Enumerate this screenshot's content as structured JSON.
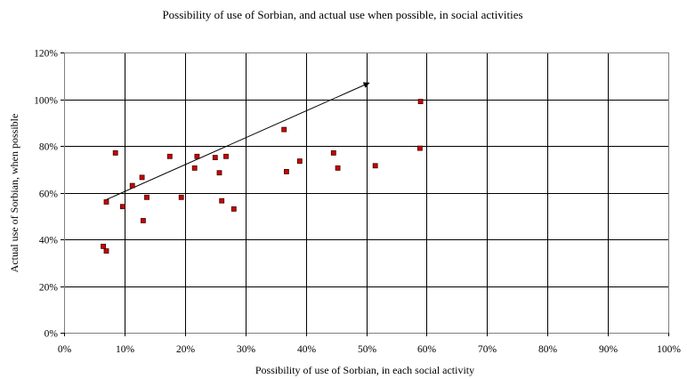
{
  "chart_data": {
    "type": "scatter",
    "title": "Possibility of use of Sorbian, and actual use when possible, in social activities",
    "xlabel": "Possibility of use of Sorbian, in each social activity",
    "ylabel": "Actual use of Sorbian, when possible",
    "xlim": [
      0,
      1.0
    ],
    "ylim": [
      0,
      1.2
    ],
    "x_ticks": [
      "0%",
      "10%",
      "20%",
      "30%",
      "40%",
      "50%",
      "60%",
      "70%",
      "80%",
      "90%",
      "100%"
    ],
    "y_ticks": [
      "0%",
      "20%",
      "40%",
      "60%",
      "80%",
      "100%",
      "120%"
    ],
    "grid": true,
    "legend": "none",
    "marker_color": "#cc0000",
    "marker_edge": "#400000",
    "series": [
      {
        "points": [
          {
            "x": 0.065,
            "y": 0.37
          },
          {
            "x": 0.07,
            "y": 0.35
          },
          {
            "x": 0.07,
            "y": 0.56
          },
          {
            "x": 0.085,
            "y": 0.77
          },
          {
            "x": 0.097,
            "y": 0.54
          },
          {
            "x": 0.113,
            "y": 0.63
          },
          {
            "x": 0.129,
            "y": 0.665
          },
          {
            "x": 0.131,
            "y": 0.48
          },
          {
            "x": 0.137,
            "y": 0.58
          },
          {
            "x": 0.175,
            "y": 0.755
          },
          {
            "x": 0.194,
            "y": 0.58
          },
          {
            "x": 0.216,
            "y": 0.705
          },
          {
            "x": 0.22,
            "y": 0.755
          },
          {
            "x": 0.25,
            "y": 0.75
          },
          {
            "x": 0.257,
            "y": 0.685
          },
          {
            "x": 0.261,
            "y": 0.565
          },
          {
            "x": 0.268,
            "y": 0.755
          },
          {
            "x": 0.281,
            "y": 0.53
          },
          {
            "x": 0.364,
            "y": 0.87
          },
          {
            "x": 0.368,
            "y": 0.69
          },
          {
            "x": 0.39,
            "y": 0.735
          },
          {
            "x": 0.446,
            "y": 0.77
          },
          {
            "x": 0.453,
            "y": 0.705
          },
          {
            "x": 0.515,
            "y": 0.715
          },
          {
            "x": 0.589,
            "y": 0.79
          },
          {
            "x": 0.59,
            "y": 0.99
          }
        ]
      }
    ],
    "annotations": [
      {
        "type": "arrow",
        "from": {
          "x": 0.07,
          "y": 0.57
        },
        "to": {
          "x": 0.505,
          "y": 1.07
        }
      }
    ]
  }
}
